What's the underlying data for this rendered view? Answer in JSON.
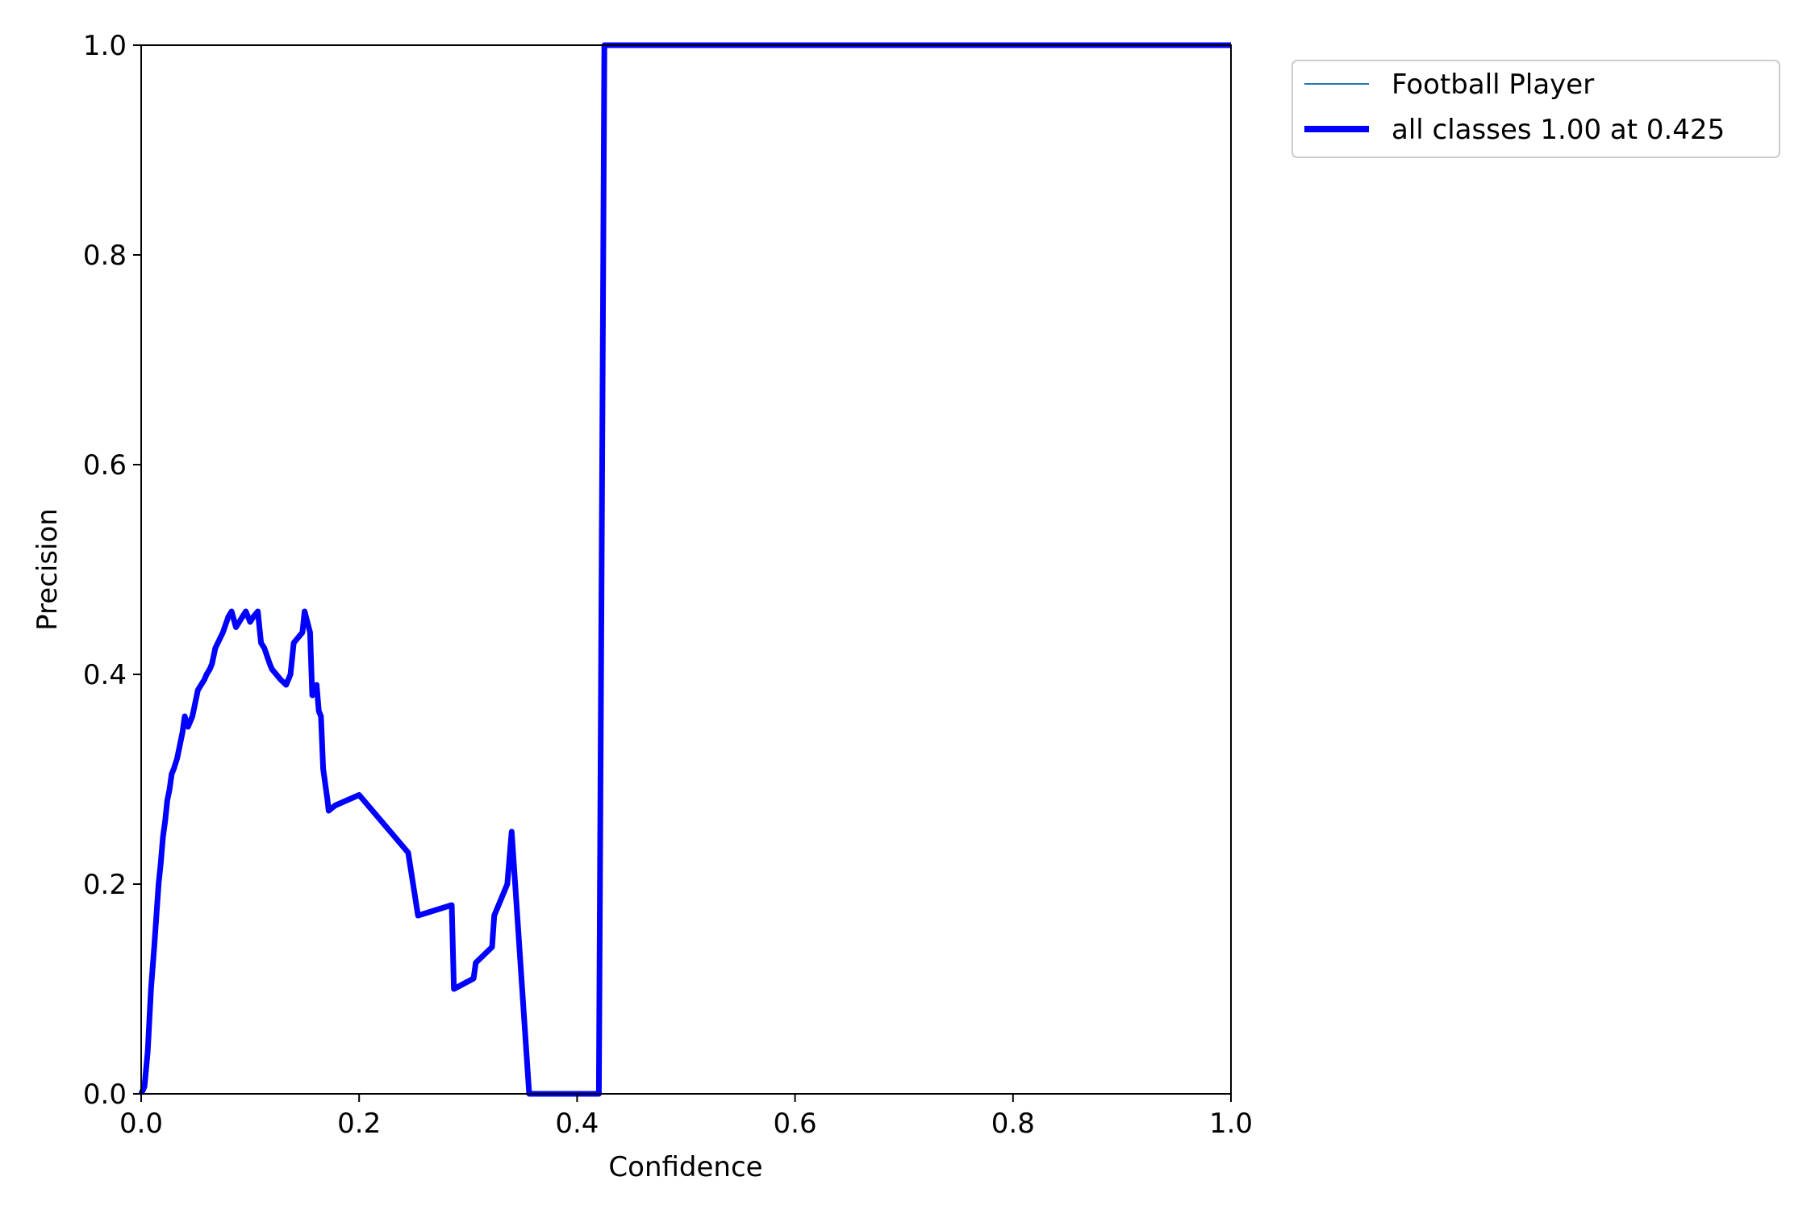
{
  "chart_data": {
    "type": "line",
    "title": "",
    "xlabel": "Confidence",
    "ylabel": "Precision",
    "xlim": [
      0,
      1
    ],
    "ylim": [
      0,
      1
    ],
    "grid": false,
    "legend_position": "outside-top-right",
    "xticks": [
      "0.0",
      "0.2",
      "0.4",
      "0.6",
      "0.8",
      "1.0"
    ],
    "yticks": [
      "0.0",
      "0.2",
      "0.4",
      "0.6",
      "0.8",
      "1.0"
    ],
    "series": [
      {
        "name": "Football Player",
        "color": "#1f77b4",
        "line_style": "thin",
        "x": [
          0.0,
          0.003,
          0.006,
          0.009,
          0.012,
          0.014,
          0.016,
          0.018,
          0.02,
          0.022,
          0.024,
          0.026,
          0.028,
          0.03,
          0.033,
          0.035,
          0.038,
          0.04,
          0.043,
          0.045,
          0.047,
          0.05,
          0.052,
          0.055,
          0.058,
          0.06,
          0.063,
          0.065,
          0.068,
          0.075,
          0.08,
          0.083,
          0.087,
          0.09,
          0.093,
          0.096,
          0.1,
          0.103,
          0.107,
          0.11,
          0.113,
          0.118,
          0.12,
          0.128,
          0.133,
          0.135,
          0.137,
          0.14,
          0.148,
          0.15,
          0.155,
          0.157,
          0.161,
          0.163,
          0.165,
          0.167,
          0.171,
          0.172,
          0.178,
          0.2,
          0.245,
          0.254,
          0.285,
          0.287,
          0.305,
          0.307,
          0.322,
          0.324,
          0.336,
          0.34,
          0.356,
          0.42,
          0.425,
          0.5,
          1.0
        ],
        "y": [
          0.0,
          0.007,
          0.04,
          0.1,
          0.14,
          0.17,
          0.2,
          0.22,
          0.245,
          0.26,
          0.28,
          0.29,
          0.305,
          0.31,
          0.32,
          0.33,
          0.345,
          0.36,
          0.35,
          0.355,
          0.36,
          0.375,
          0.385,
          0.39,
          0.395,
          0.4,
          0.405,
          0.41,
          0.425,
          0.44,
          0.455,
          0.46,
          0.445,
          0.45,
          0.455,
          0.46,
          0.45,
          0.455,
          0.46,
          0.43,
          0.425,
          0.41,
          0.405,
          0.395,
          0.39,
          0.395,
          0.4,
          0.43,
          0.44,
          0.46,
          0.44,
          0.38,
          0.39,
          0.365,
          0.36,
          0.31,
          0.28,
          0.27,
          0.275,
          0.285,
          0.23,
          0.17,
          0.18,
          0.1,
          0.11,
          0.125,
          0.14,
          0.17,
          0.2,
          0.25,
          0.0,
          0.0,
          1.0,
          1.0,
          1.0
        ]
      },
      {
        "name": "all classes 1.00 at 0.425",
        "color": "#0000ff",
        "line_style": "thick",
        "x": [
          0.0,
          0.003,
          0.006,
          0.009,
          0.012,
          0.014,
          0.016,
          0.018,
          0.02,
          0.022,
          0.024,
          0.026,
          0.028,
          0.03,
          0.033,
          0.035,
          0.038,
          0.04,
          0.043,
          0.045,
          0.047,
          0.05,
          0.052,
          0.055,
          0.058,
          0.06,
          0.063,
          0.065,
          0.068,
          0.075,
          0.08,
          0.083,
          0.087,
          0.09,
          0.093,
          0.096,
          0.1,
          0.103,
          0.107,
          0.11,
          0.113,
          0.118,
          0.12,
          0.128,
          0.133,
          0.135,
          0.137,
          0.14,
          0.148,
          0.15,
          0.155,
          0.157,
          0.161,
          0.163,
          0.165,
          0.167,
          0.171,
          0.172,
          0.178,
          0.2,
          0.245,
          0.254,
          0.285,
          0.287,
          0.305,
          0.307,
          0.322,
          0.324,
          0.336,
          0.34,
          0.356,
          0.42,
          0.425,
          0.5,
          1.0
        ],
        "y": [
          0.0,
          0.007,
          0.04,
          0.1,
          0.14,
          0.17,
          0.2,
          0.22,
          0.245,
          0.26,
          0.28,
          0.29,
          0.305,
          0.31,
          0.32,
          0.33,
          0.345,
          0.36,
          0.35,
          0.355,
          0.36,
          0.375,
          0.385,
          0.39,
          0.395,
          0.4,
          0.405,
          0.41,
          0.425,
          0.44,
          0.455,
          0.46,
          0.445,
          0.45,
          0.455,
          0.46,
          0.45,
          0.455,
          0.46,
          0.43,
          0.425,
          0.41,
          0.405,
          0.395,
          0.39,
          0.395,
          0.4,
          0.43,
          0.44,
          0.46,
          0.44,
          0.38,
          0.39,
          0.365,
          0.36,
          0.31,
          0.28,
          0.27,
          0.275,
          0.285,
          0.23,
          0.17,
          0.18,
          0.1,
          0.11,
          0.125,
          0.14,
          0.17,
          0.2,
          0.25,
          0.0,
          0.0,
          1.0,
          1.0,
          1.0
        ]
      }
    ]
  }
}
